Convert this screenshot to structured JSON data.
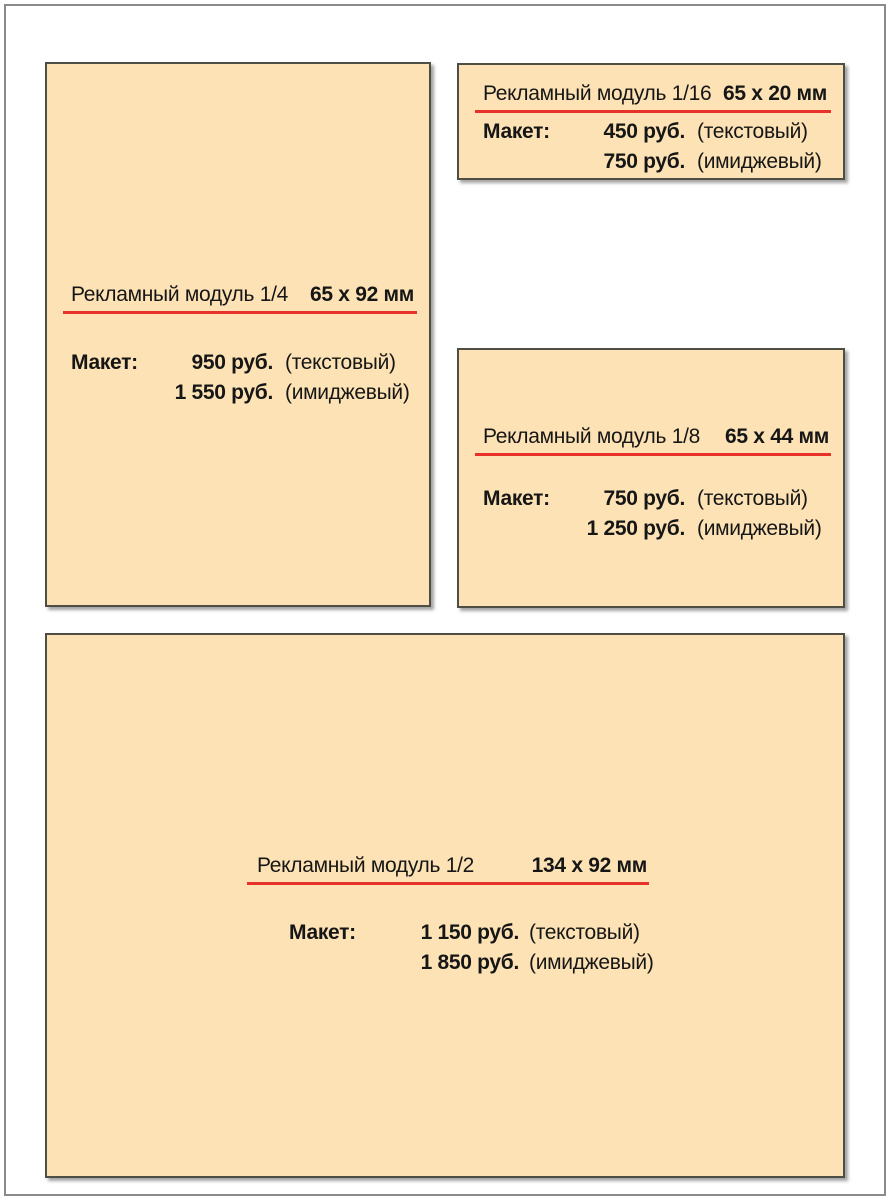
{
  "colors": {
    "module_fill": "#FCE2B4",
    "module_border": "#4f4e44",
    "underline": "#E63229",
    "text": "#161616",
    "frame_border": "#8a8a8a"
  },
  "modules": [
    {
      "name": "module-1-4",
      "title": "Рекламный модуль 1/4",
      "size": "65 x 92 мм",
      "label": "Макет:",
      "prices": [
        {
          "amount": "950 руб.",
          "kind": "(текстовый)"
        },
        {
          "amount": "1 550 руб.",
          "kind": "(имиджевый)"
        }
      ]
    },
    {
      "name": "module-1-16",
      "title": "Рекламный модуль 1/16",
      "size": "65 x 20 мм",
      "label": "Макет:",
      "prices": [
        {
          "amount": "450 руб.",
          "kind": "(текстовый)"
        },
        {
          "amount": "750 руб.",
          "kind": "(имиджевый)"
        }
      ]
    },
    {
      "name": "module-1-8",
      "title": "Рекламный модуль 1/8",
      "size": "65 x 44 мм",
      "label": "Макет:",
      "prices": [
        {
          "amount": "750 руб.",
          "kind": "(текстовый)"
        },
        {
          "amount": "1 250 руб.",
          "kind": "(имиджевый)"
        }
      ]
    },
    {
      "name": "module-1-2",
      "title": "Рекламный модуль 1/2",
      "size": "134 x 92 мм",
      "label": "Макет:",
      "prices": [
        {
          "amount": "1 150 руб.",
          "kind": "(текстовый)"
        },
        {
          "amount": "1 850 руб.",
          "kind": "(имиджевый)"
        }
      ]
    }
  ]
}
